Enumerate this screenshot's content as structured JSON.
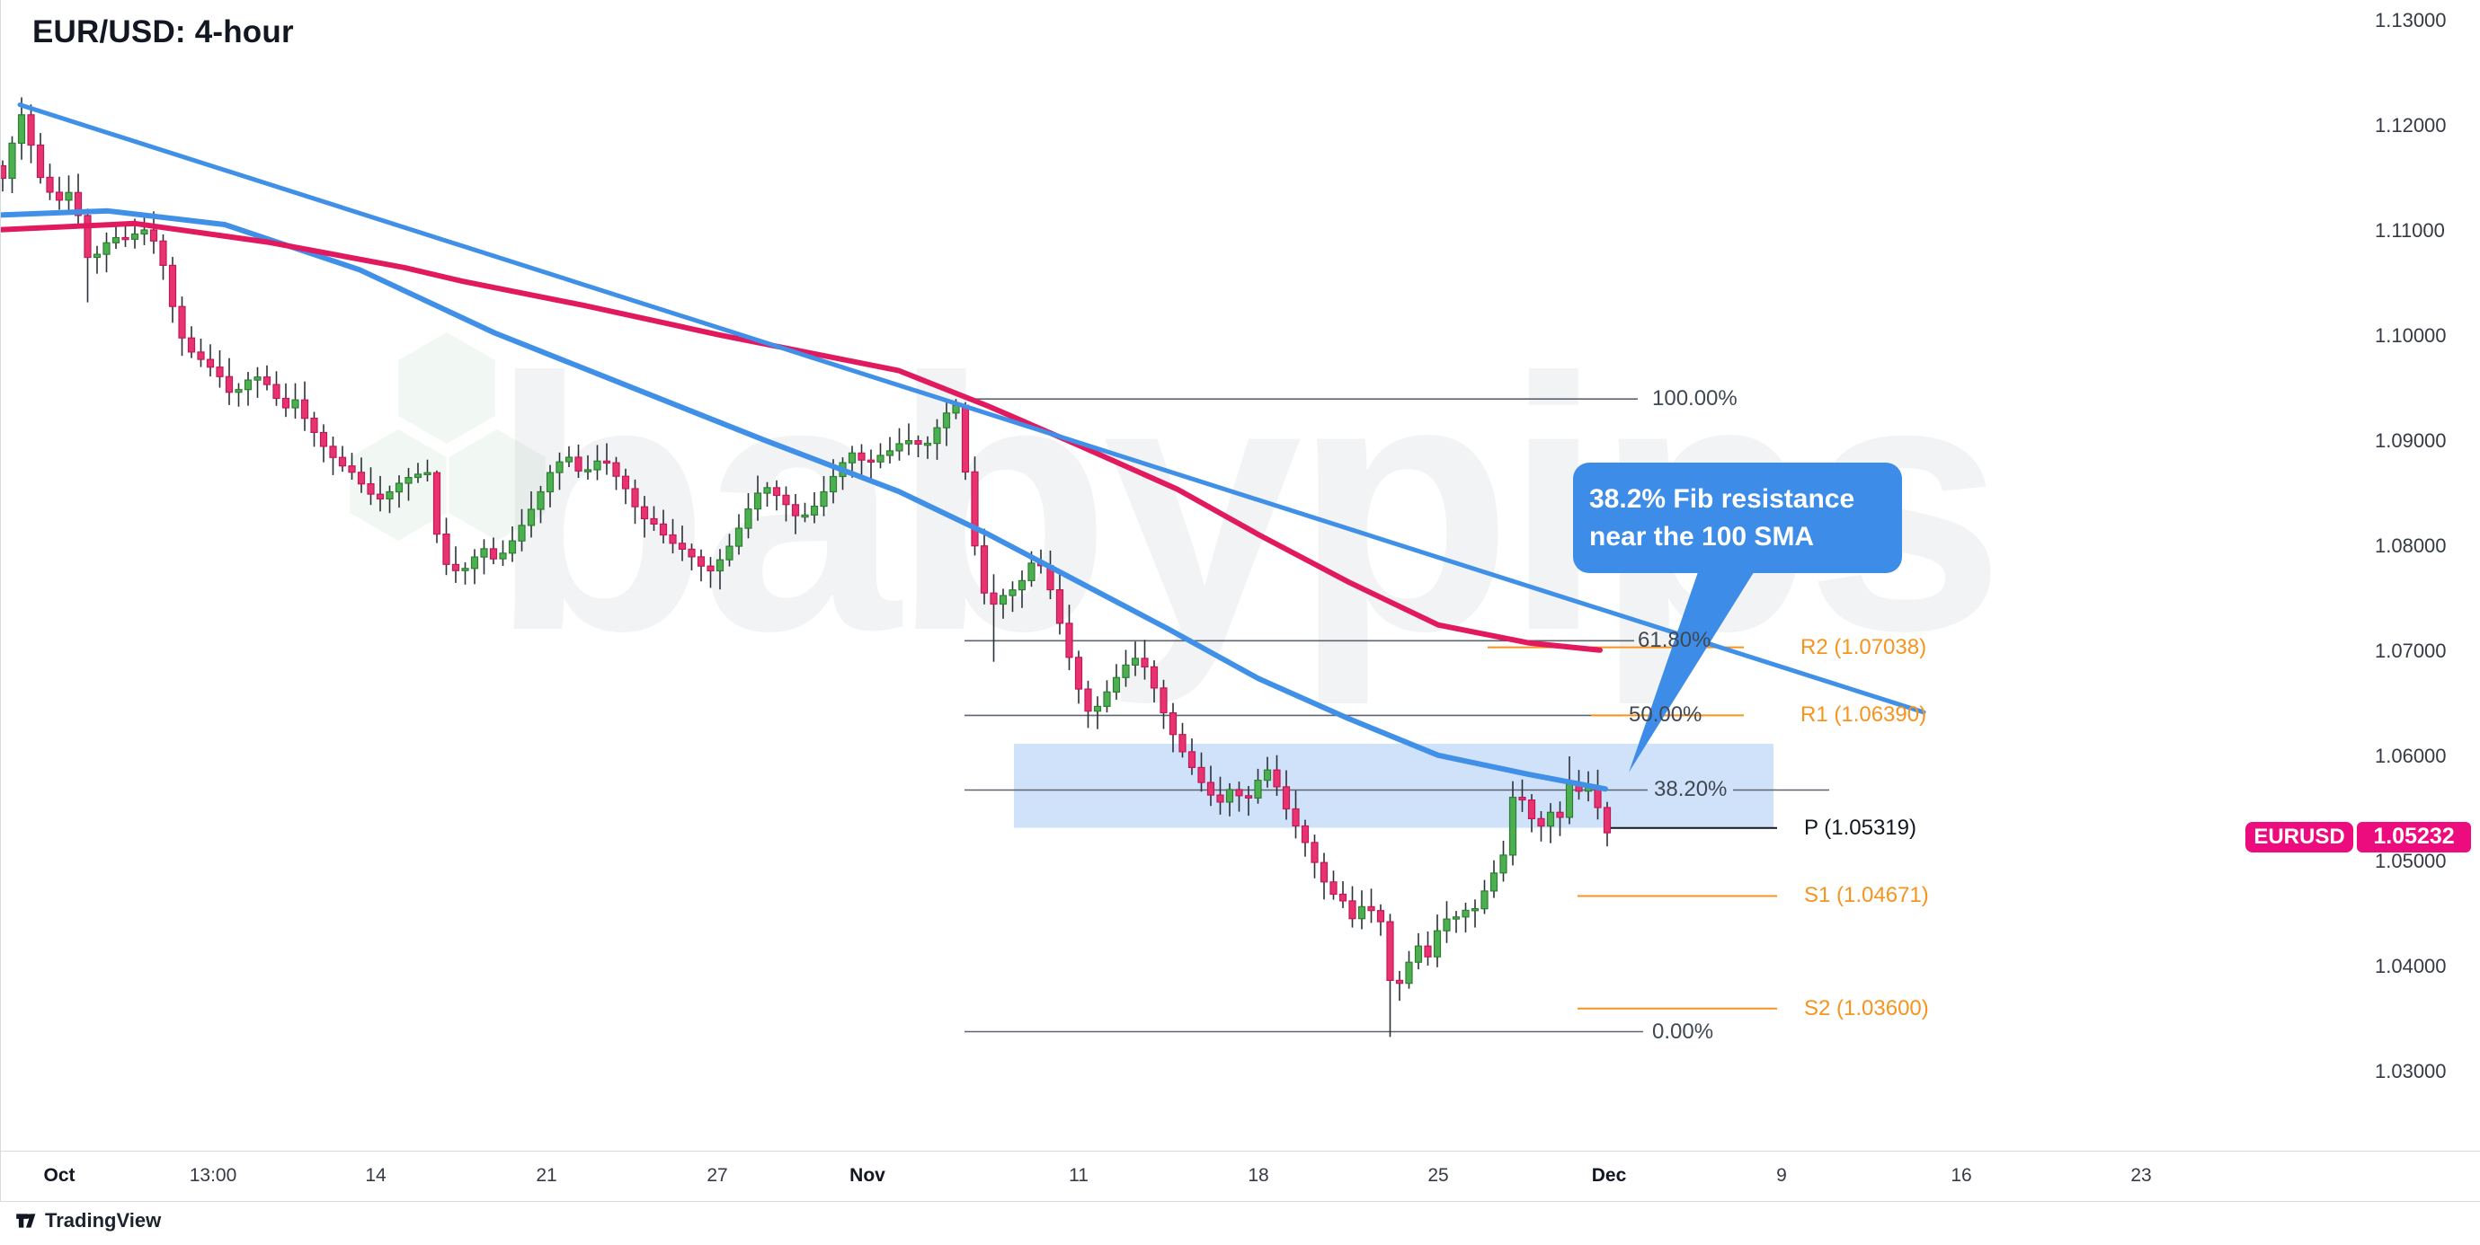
{
  "title": "EUR/USD: 4-hour",
  "callout": {
    "line1": "38.2% Fib resistance",
    "line2": "near the 100 SMA",
    "color": "#3d8ce8",
    "tail_tip": [
      1812,
      860
    ],
    "tail_base": [
      [
        1890,
        634
      ],
      [
        1953,
        634
      ]
    ]
  },
  "attribution": {
    "brand": "TradingView"
  },
  "price_label": {
    "symbol": "EURUSD",
    "value": "1.05232",
    "price": 1.05232,
    "color": "#ec0c7d"
  },
  "watermark": {
    "text": "babypips",
    "hexagons": [
      [
        497,
        432,
        62
      ],
      [
        443,
        540,
        62
      ],
      [
        553,
        540,
        62
      ]
    ]
  },
  "chart_data": {
    "type": "candlestick",
    "symbol": "EUR/USD",
    "timeframe": "4-hour",
    "ylim": [
      1.03,
      1.13
    ],
    "grid": false,
    "scale": {
      "p1": 1.13,
      "y1": 23,
      "p2": 1.03,
      "y2": 1193
    },
    "price_axis_ticks": [
      "1.13000",
      "1.12000",
      "1.11000",
      "1.10000",
      "1.09000",
      "1.08000",
      "1.07000",
      "1.06000",
      "1.05000",
      "1.04000",
      "1.03000"
    ],
    "time_axis_ticks": [
      {
        "label": "Oct",
        "x": 66,
        "bold": true
      },
      {
        "label": "13:00",
        "x": 237,
        "bold": false
      },
      {
        "label": "14",
        "x": 418,
        "bold": false
      },
      {
        "label": "21",
        "x": 608,
        "bold": false
      },
      {
        "label": "27",
        "x": 798,
        "bold": false
      },
      {
        "label": "Nov",
        "x": 965,
        "bold": true
      },
      {
        "label": "11",
        "x": 1200,
        "bold": false
      },
      {
        "label": "18",
        "x": 1400,
        "bold": false
      },
      {
        "label": "25",
        "x": 1600,
        "bold": false
      },
      {
        "label": "Dec",
        "x": 1790,
        "bold": true
      },
      {
        "label": "9",
        "x": 1982,
        "bold": false
      },
      {
        "label": "16",
        "x": 2182,
        "bold": false
      },
      {
        "label": "23",
        "x": 2382,
        "bold": false
      }
    ],
    "candles": {
      "step": 10.5,
      "x0": 3,
      "count": 171,
      "body_width": 7,
      "up_color": "#4caf50",
      "up_stroke": "#2e7d32",
      "down_color": "#e8336e",
      "down_stroke": "#c2185b",
      "wick_color": "#2b3139",
      "close_path": [
        [
          3,
          1.115
        ],
        [
          14,
          1.1185
        ],
        [
          25,
          1.1213
        ],
        [
          35,
          1.118
        ],
        [
          46,
          1.1148
        ],
        [
          57,
          1.1135
        ],
        [
          68,
          1.1128
        ],
        [
          78,
          1.1138
        ],
        [
          88,
          1.1112
        ],
        [
          100,
          1.1065
        ],
        [
          112,
          1.1084
        ],
        [
          126,
          1.1094
        ],
        [
          140,
          1.1092
        ],
        [
          152,
          1.1098
        ],
        [
          164,
          1.1102
        ],
        [
          176,
          1.1082
        ],
        [
          186,
          1.1055
        ],
        [
          196,
          1.101
        ],
        [
          208,
          1.0988
        ],
        [
          220,
          1.098
        ],
        [
          232,
          1.0972
        ],
        [
          244,
          1.0962
        ],
        [
          256,
          1.0945
        ],
        [
          268,
          1.095
        ],
        [
          280,
          1.0962
        ],
        [
          292,
          1.096
        ],
        [
          304,
          1.0945
        ],
        [
          316,
          1.093
        ],
        [
          328,
          1.094
        ],
        [
          340,
          1.092
        ],
        [
          352,
          1.0905
        ],
        [
          364,
          1.089
        ],
        [
          378,
          1.0878
        ],
        [
          392,
          1.087
        ],
        [
          406,
          1.0855
        ],
        [
          420,
          1.0843
        ],
        [
          434,
          1.0852
        ],
        [
          448,
          1.0863
        ],
        [
          462,
          1.0868
        ],
        [
          476,
          1.087
        ],
        [
          490,
          1.0788
        ],
        [
          502,
          1.0778
        ],
        [
          514,
          1.0775
        ],
        [
          526,
          1.0788
        ],
        [
          538,
          1.0798
        ],
        [
          550,
          1.0787
        ],
        [
          562,
          1.0795
        ],
        [
          574,
          1.081
        ],
        [
          586,
          1.0828
        ],
        [
          598,
          1.0845
        ],
        [
          610,
          1.0868
        ],
        [
          622,
          1.088
        ],
        [
          634,
          1.0885
        ],
        [
          646,
          1.0868
        ],
        [
          658,
          1.0875
        ],
        [
          670,
          1.0886
        ],
        [
          682,
          1.087
        ],
        [
          694,
          1.0858
        ],
        [
          706,
          1.0838
        ],
        [
          718,
          1.0825
        ],
        [
          730,
          1.082
        ],
        [
          742,
          1.0806
        ],
        [
          754,
          1.08
        ],
        [
          766,
          1.0793
        ],
        [
          778,
          1.0782
        ],
        [
          790,
          1.0776
        ],
        [
          802,
          1.0788
        ],
        [
          814,
          1.0803
        ],
        [
          826,
          1.0824
        ],
        [
          838,
          1.0845
        ],
        [
          850,
          1.0858
        ],
        [
          862,
          1.085
        ],
        [
          874,
          1.084
        ],
        [
          886,
          1.0828
        ],
        [
          898,
          1.083
        ],
        [
          910,
          1.0842
        ],
        [
          922,
          1.086
        ],
        [
          934,
          1.0875
        ],
        [
          946,
          1.089
        ],
        [
          958,
          1.0882
        ],
        [
          970,
          1.088
        ],
        [
          982,
          1.0888
        ],
        [
          994,
          1.0892
        ],
        [
          1006,
          1.0902
        ],
        [
          1018,
          1.0898
        ],
        [
          1030,
          1.0895
        ],
        [
          1042,
          1.0912
        ],
        [
          1054,
          1.0928
        ],
        [
          1065,
          1.0935
        ],
        [
          1078,
          1.0842
        ],
        [
          1090,
          1.0765
        ],
        [
          1102,
          1.0742
        ],
        [
          1114,
          1.0752
        ],
        [
          1126,
          1.0758
        ],
        [
          1138,
          1.0768
        ],
        [
          1150,
          1.0788
        ],
        [
          1162,
          1.0778
        ],
        [
          1174,
          1.0742
        ],
        [
          1186,
          1.0705
        ],
        [
          1198,
          1.0668
        ],
        [
          1212,
          1.064
        ],
        [
          1224,
          1.065
        ],
        [
          1236,
          1.0668
        ],
        [
          1248,
          1.0682
        ],
        [
          1260,
          1.0695
        ],
        [
          1272,
          1.0688
        ],
        [
          1284,
          1.0665
        ],
        [
          1296,
          1.0638
        ],
        [
          1308,
          1.0615
        ],
        [
          1320,
          1.0598
        ],
        [
          1334,
          1.0578
        ],
        [
          1348,
          1.0562
        ],
        [
          1360,
          1.0555
        ],
        [
          1372,
          1.0575
        ],
        [
          1384,
          1.0552
        ],
        [
          1396,
          1.0572
        ],
        [
          1408,
          1.059
        ],
        [
          1420,
          1.0572
        ],
        [
          1432,
          1.0548
        ],
        [
          1444,
          1.053
        ],
        [
          1456,
          1.0512
        ],
        [
          1468,
          1.0488
        ],
        [
          1480,
          1.047
        ],
        [
          1492,
          1.0466
        ],
        [
          1504,
          1.0445
        ],
        [
          1516,
          1.0458
        ],
        [
          1528,
          1.0452
        ],
        [
          1540,
          1.0438
        ],
        [
          1548,
          1.0375
        ],
        [
          1556,
          1.0382
        ],
        [
          1564,
          1.0398
        ],
        [
          1572,
          1.0412
        ],
        [
          1580,
          1.0422
        ],
        [
          1588,
          1.0408
        ],
        [
          1596,
          1.0428
        ],
        [
          1606,
          1.0448
        ],
        [
          1616,
          1.044
        ],
        [
          1626,
          1.0458
        ],
        [
          1636,
          1.0448
        ],
        [
          1646,
          1.0462
        ],
        [
          1656,
          1.048
        ],
        [
          1666,
          1.0495
        ],
        [
          1676,
          1.0512
        ],
        [
          1684,
          1.0568
        ],
        [
          1694,
          1.0558
        ],
        [
          1702,
          1.0545
        ],
        [
          1710,
          1.0528
        ],
        [
          1718,
          1.0538
        ],
        [
          1726,
          1.0548
        ],
        [
          1734,
          1.0532
        ],
        [
          1742,
          1.0585
        ],
        [
          1750,
          1.0562
        ],
        [
          1758,
          1.0568
        ],
        [
          1766,
          1.0572
        ],
        [
          1774,
          1.056
        ],
        [
          1782,
          1.054
        ],
        [
          1790,
          1.0523
        ]
      ],
      "wick_overrides": [
        {
          "x": 25,
          "high": 1.1227
        },
        {
          "x": 100,
          "low": 1.1032
        },
        {
          "x": 490,
          "high": 1.0872
        },
        {
          "x": 1065,
          "high": 1.094
        },
        {
          "x": 1078,
          "high": 1.0937
        },
        {
          "x": 1102,
          "low": 1.069
        },
        {
          "x": 1212,
          "low": 1.0627
        },
        {
          "x": 1548,
          "low": 1.0333
        },
        {
          "x": 1742,
          "high": 1.06
        }
      ]
    },
    "series": [
      {
        "name": "100 SMA",
        "color": "#4190e8",
        "width": 6,
        "kind": "sma",
        "points": [
          [
            0,
            1.1115
          ],
          [
            120,
            1.1119
          ],
          [
            250,
            1.1106
          ],
          [
            400,
            1.1063
          ],
          [
            550,
            1.1003
          ],
          [
            700,
            1.0952
          ],
          [
            850,
            1.0901
          ],
          [
            1000,
            1.0852
          ],
          [
            1100,
            1.0811
          ],
          [
            1200,
            1.0766
          ],
          [
            1300,
            1.0721
          ],
          [
            1400,
            1.0674
          ],
          [
            1500,
            1.0636
          ],
          [
            1600,
            1.0601
          ],
          [
            1700,
            1.0583
          ],
          [
            1786,
            1.0569
          ]
        ]
      },
      {
        "name": "200 SMA",
        "color": "#e1195f",
        "width": 6,
        "kind": "sma",
        "points": [
          [
            0,
            1.1101
          ],
          [
            150,
            1.1107
          ],
          [
            300,
            1.1089
          ],
          [
            450,
            1.1065
          ],
          [
            515,
            1.1052
          ],
          [
            650,
            1.1029
          ],
          [
            800,
            1.1001
          ],
          [
            900,
            1.0984
          ],
          [
            1000,
            1.0967
          ],
          [
            1100,
            1.0933
          ],
          [
            1200,
            1.0896
          ],
          [
            1310,
            1.0854
          ],
          [
            1400,
            1.0811
          ],
          [
            1500,
            1.0766
          ],
          [
            1600,
            1.0725
          ],
          [
            1700,
            1.0708
          ],
          [
            1780,
            1.0701
          ]
        ]
      },
      {
        "name": "descending trendline",
        "color": "#4190e8",
        "width": 5,
        "kind": "trendline",
        "points": [
          [
            22,
            1.122
          ],
          [
            2140,
            1.0642
          ]
        ]
      }
    ],
    "fib_retracement": {
      "swing_high": 1.094,
      "swing_low": 1.0338,
      "line_color": "#5d646e",
      "levels": [
        {
          "pct": 100.0,
          "label": "100.00%",
          "label_x": 1838,
          "spans": [
            [
              1073,
              1822
            ]
          ]
        },
        {
          "pct": 61.8,
          "label": "61.80%",
          "label_x": 1822,
          "spans": [
            [
              1073,
              1818
            ]
          ]
        },
        {
          "pct": 50.0,
          "label": "50.00%",
          "label_x": 1812,
          "spans": [
            [
              1073,
              1806
            ]
          ]
        },
        {
          "pct": 38.2,
          "label": "38.20%",
          "label_x": 1840,
          "spans": [
            [
              1073,
              1833
            ],
            [
              1928,
              2035
            ]
          ]
        },
        {
          "pct": 0.0,
          "label": "0.00%",
          "label_x": 1838,
          "spans": [
            [
              1073,
              1828
            ]
          ]
        }
      ]
    },
    "pivot_points": [
      {
        "name": "R2",
        "price": 1.07038,
        "label": "R2 (1.07038)",
        "color": "#f7941d",
        "line": [
          1655,
          1940
        ],
        "label_x": 2003
      },
      {
        "name": "R1",
        "price": 1.0639,
        "label": "R1 (1.06390)",
        "color": "#f7941d",
        "line": [
          1770,
          1940
        ],
        "label_x": 2003
      },
      {
        "name": "P",
        "price": 1.05319,
        "label": "P (1.05319)",
        "color": "#131722",
        "line": [
          1786,
          1977
        ],
        "label_x": 2007
      },
      {
        "name": "S1",
        "price": 1.04671,
        "label": "S1 (1.04671)",
        "color": "#f7941d",
        "line": [
          1755,
          1977
        ],
        "label_x": 2007
      },
      {
        "name": "S2",
        "price": 1.036,
        "label": "S2 (1.03600)",
        "color": "#f7941d",
        "line": [
          1755,
          1977
        ],
        "label_x": 2007
      }
    ],
    "highlight_zone": {
      "x1": 1128,
      "x2": 1973,
      "price_top": 1.0612,
      "price_bottom": 1.0532,
      "color": "rgba(100,160,235,0.30)"
    },
    "last_price": 1.05232
  },
  "layout_consts": {
    "axis_x": 2621,
    "time_axis_top": 1281,
    "time_axis_bottom": 1337
  }
}
